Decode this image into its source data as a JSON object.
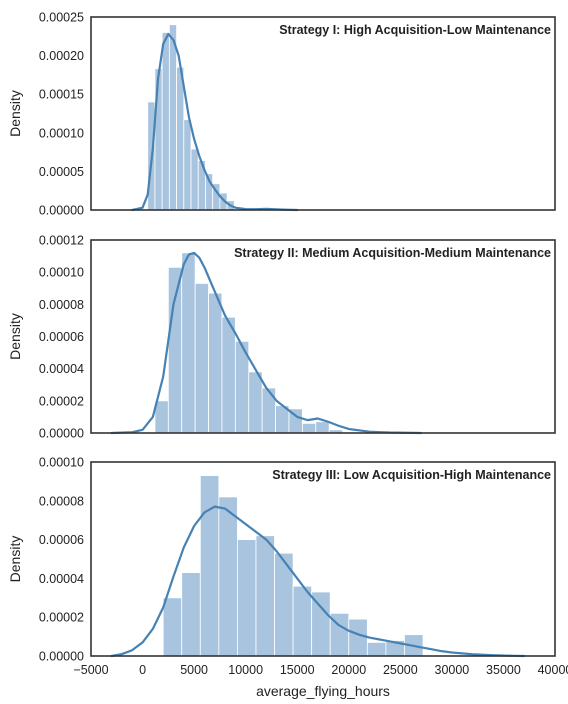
{
  "chart_data": [
    {
      "type": "histogram",
      "title": "Strategy I: High Acquisition-Low Maintenance",
      "ylabel": "Density",
      "xlabel": "",
      "xlim": [
        -5000,
        40000
      ],
      "ylim": [
        0,
        0.00025
      ],
      "yticks": [
        "0.00000",
        "0.00005",
        "0.00010",
        "0.00015",
        "0.00020",
        "0.00025"
      ],
      "bar_color": "#a9c4de",
      "line_color": "#4682b4",
      "bins": [
        {
          "x0": 500,
          "x1": 1200,
          "density": 0.00014
        },
        {
          "x0": 1200,
          "x1": 1900,
          "density": 0.000183
        },
        {
          "x0": 1900,
          "x1": 2600,
          "density": 0.00023
        },
        {
          "x0": 2600,
          "x1": 3300,
          "density": 0.00024
        },
        {
          "x0": 3300,
          "x1": 4000,
          "density": 0.000185
        },
        {
          "x0": 4000,
          "x1": 4700,
          "density": 0.000117
        },
        {
          "x0": 4700,
          "x1": 5400,
          "density": 7.9e-05
        },
        {
          "x0": 5400,
          "x1": 6100,
          "density": 6.4e-05
        },
        {
          "x0": 6100,
          "x1": 6800,
          "density": 4.7e-05
        },
        {
          "x0": 6800,
          "x1": 7500,
          "density": 3.4e-05
        },
        {
          "x0": 7500,
          "x1": 8200,
          "density": 2.2e-05
        },
        {
          "x0": 8200,
          "x1": 8900,
          "density": 1.2e-05
        }
      ],
      "kde": [
        [
          -1000,
          0
        ],
        [
          0,
          3e-06
        ],
        [
          500,
          2e-05
        ],
        [
          1000,
          8e-05
        ],
        [
          1500,
          0.00017
        ],
        [
          2000,
          0.000215
        ],
        [
          2500,
          0.000228
        ],
        [
          3000,
          0.00022
        ],
        [
          3500,
          0.0002
        ],
        [
          4000,
          0.00016
        ],
        [
          4500,
          0.00012
        ],
        [
          5000,
          9.2e-05
        ],
        [
          5500,
          7e-05
        ],
        [
          6000,
          5.2e-05
        ],
        [
          6500,
          3.7e-05
        ],
        [
          7000,
          2.7e-05
        ],
        [
          7500,
          1.8e-05
        ],
        [
          8000,
          1.1e-05
        ],
        [
          8500,
          6e-06
        ],
        [
          9000,
          3e-06
        ],
        [
          10000,
          1.2e-06
        ],
        [
          11000,
          1e-06
        ],
        [
          12000,
          1.5e-06
        ],
        [
          13000,
          8e-07
        ],
        [
          14000,
          3e-07
        ],
        [
          15000,
          0
        ]
      ]
    },
    {
      "type": "histogram",
      "title": "Strategy II: Medium Acquisition-Medium Maintenance",
      "ylabel": "Density",
      "xlabel": "",
      "xlim": [
        -5000,
        40000
      ],
      "ylim": [
        0,
        0.00012
      ],
      "yticks": [
        "0.00000",
        "0.00002",
        "0.00004",
        "0.00006",
        "0.00008",
        "0.00010",
        "0.00012"
      ],
      "bar_color": "#a9c4de",
      "line_color": "#4682b4",
      "bins": [
        {
          "x0": 1200,
          "x1": 2500,
          "density": 2e-05
        },
        {
          "x0": 2500,
          "x1": 3800,
          "density": 0.000103
        },
        {
          "x0": 3800,
          "x1": 5100,
          "density": 0.000112
        },
        {
          "x0": 5100,
          "x1": 6400,
          "density": 9.3e-05
        },
        {
          "x0": 6400,
          "x1": 7700,
          "density": 8.7e-05
        },
        {
          "x0": 7700,
          "x1": 9000,
          "density": 7.2e-05
        },
        {
          "x0": 9000,
          "x1": 10300,
          "density": 5.7e-05
        },
        {
          "x0": 10300,
          "x1": 11600,
          "density": 3.8e-05
        },
        {
          "x0": 11600,
          "x1": 12900,
          "density": 2.8e-05
        },
        {
          "x0": 12900,
          "x1": 14200,
          "density": 1.7e-05
        },
        {
          "x0": 14200,
          "x1": 15500,
          "density": 1.5e-05
        },
        {
          "x0": 15500,
          "x1": 16800,
          "density": 6e-06
        },
        {
          "x0": 16800,
          "x1": 18100,
          "density": 7e-06
        },
        {
          "x0": 18100,
          "x1": 19400,
          "density": 2e-06
        }
      ],
      "kde": [
        [
          -3000,
          0
        ],
        [
          -1000,
          5e-07
        ],
        [
          0,
          2e-06
        ],
        [
          1000,
          1e-05
        ],
        [
          2000,
          3.5e-05
        ],
        [
          3000,
          8e-05
        ],
        [
          4000,
          0.000105
        ],
        [
          4500,
          0.000111
        ],
        [
          5000,
          0.000112
        ],
        [
          5500,
          0.000109
        ],
        [
          6000,
          0.000103
        ],
        [
          7000,
          8.8e-05
        ],
        [
          8000,
          7.3e-05
        ],
        [
          9000,
          6.2e-05
        ],
        [
          10000,
          5e-05
        ],
        [
          11000,
          3.9e-05
        ],
        [
          12000,
          2.8e-05
        ],
        [
          13000,
          2e-05
        ],
        [
          14000,
          1.5e-05
        ],
        [
          15000,
          1e-05
        ],
        [
          16000,
          8e-06
        ],
        [
          17000,
          9e-06
        ],
        [
          18000,
          7e-06
        ],
        [
          19000,
          4.5e-06
        ],
        [
          20000,
          2.5e-06
        ],
        [
          22000,
          8e-07
        ],
        [
          24000,
          3e-07
        ],
        [
          27000,
          0
        ]
      ]
    },
    {
      "type": "histogram",
      "title": "Strategy III: Low Acquisition-High Maintenance",
      "ylabel": "Density",
      "xlabel": "average_flying_hours",
      "xlim": [
        -5000,
        40000
      ],
      "ylim": [
        0,
        0.0001
      ],
      "xticks": [
        "−5000",
        "0",
        "5000",
        "10000",
        "15000",
        "20000",
        "25000",
        "30000",
        "35000",
        "40000"
      ],
      "yticks": [
        "0.00000",
        "0.00002",
        "0.00004",
        "0.00006",
        "0.00008",
        "0.00010"
      ],
      "bar_color": "#a9c4de",
      "line_color": "#4682b4",
      "bins": [
        {
          "x0": 2000,
          "x1": 3800,
          "density": 3e-05
        },
        {
          "x0": 3800,
          "x1": 5600,
          "density": 4.3e-05
        },
        {
          "x0": 5600,
          "x1": 7400,
          "density": 9.3e-05
        },
        {
          "x0": 7400,
          "x1": 9200,
          "density": 8.2e-05
        },
        {
          "x0": 9200,
          "x1": 11000,
          "density": 6e-05
        },
        {
          "x0": 11000,
          "x1": 12800,
          "density": 6.2e-05
        },
        {
          "x0": 12800,
          "x1": 14600,
          "density": 5.3e-05
        },
        {
          "x0": 14600,
          "x1": 16400,
          "density": 3.6e-05
        },
        {
          "x0": 16400,
          "x1": 18200,
          "density": 3.3e-05
        },
        {
          "x0": 18200,
          "x1": 20000,
          "density": 2.2e-05
        },
        {
          "x0": 20000,
          "x1": 21800,
          "density": 1.9e-05
        },
        {
          "x0": 21800,
          "x1": 23600,
          "density": 7e-06
        },
        {
          "x0": 23600,
          "x1": 25400,
          "density": 8e-06
        },
        {
          "x0": 25400,
          "x1": 27200,
          "density": 1.1e-05
        }
      ],
      "kde": [
        [
          -3000,
          0
        ],
        [
          -2000,
          1e-06
        ],
        [
          -1000,
          3e-06
        ],
        [
          0,
          7e-06
        ],
        [
          1000,
          1.4e-05
        ],
        [
          2000,
          2.5e-05
        ],
        [
          3000,
          4.1e-05
        ],
        [
          4000,
          5.6e-05
        ],
        [
          5000,
          6.7e-05
        ],
        [
          6000,
          7.4e-05
        ],
        [
          7000,
          7.7e-05
        ],
        [
          8000,
          7.6e-05
        ],
        [
          9000,
          7.2e-05
        ],
        [
          10000,
          6.8e-05
        ],
        [
          11000,
          6.4e-05
        ],
        [
          12000,
          6e-05
        ],
        [
          13000,
          5.4e-05
        ],
        [
          14000,
          4.7e-05
        ],
        [
          15000,
          4e-05
        ],
        [
          16000,
          3.3e-05
        ],
        [
          17000,
          2.7e-05
        ],
        [
          18000,
          2.1e-05
        ],
        [
          19000,
          1.6e-05
        ],
        [
          20000,
          1.3e-05
        ],
        [
          21000,
          1.1e-05
        ],
        [
          22000,
          9.5e-06
        ],
        [
          23000,
          8.5e-06
        ],
        [
          24000,
          7.5e-06
        ],
        [
          25000,
          6.5e-06
        ],
        [
          26000,
          5.5e-06
        ],
        [
          27000,
          4.5e-06
        ],
        [
          28000,
          3.5e-06
        ],
        [
          29000,
          2.5e-06
        ],
        [
          30000,
          1.8e-06
        ],
        [
          32000,
          9e-07
        ],
        [
          34000,
          4e-07
        ],
        [
          36000,
          1e-07
        ],
        [
          37000,
          0
        ]
      ]
    }
  ]
}
